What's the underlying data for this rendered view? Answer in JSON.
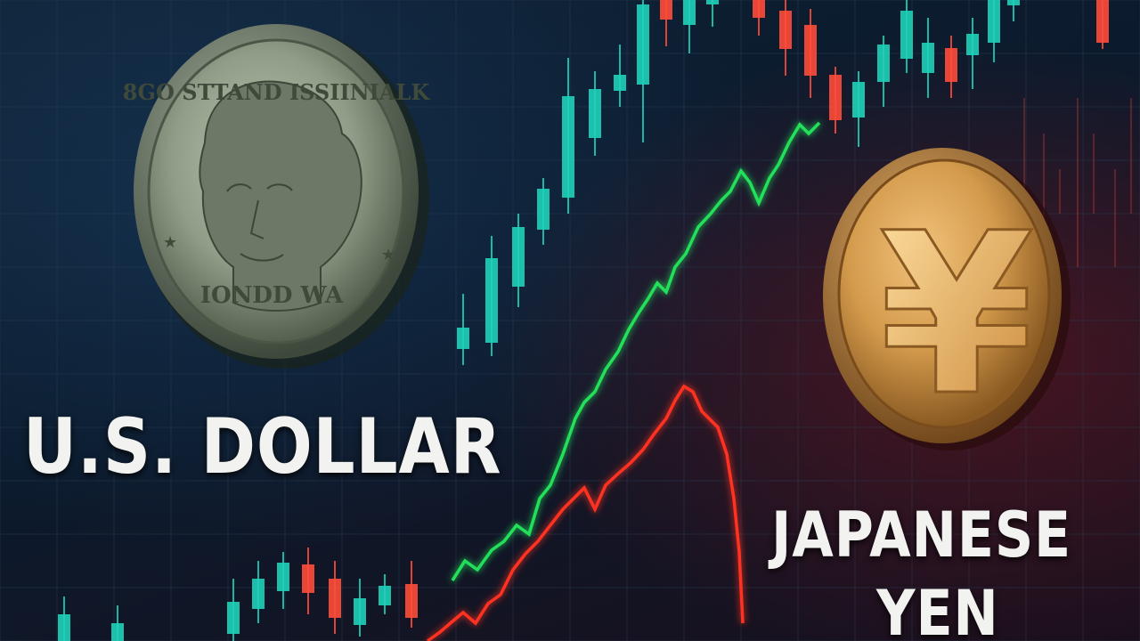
{
  "captions": {
    "usd": "U.S. DOLLAR",
    "jpy_line1": "JAPANESE",
    "jpy_line2": "YEN"
  },
  "coins": {
    "dollar": {
      "top_text": "8GO STTAND ISSIINIALK",
      "bottom_text": "IONDD WA"
    },
    "yen": {
      "symbol": "¥"
    }
  },
  "colors": {
    "up_candle": "#1fd1b9",
    "down_candle": "#ff4d3a",
    "green_line": "#22e05a",
    "red_line": "#ff3322",
    "dollar_coin": "#9aa894",
    "yen_coin": "#d39a4c",
    "caption_text": "#f2f2f0"
  }
}
